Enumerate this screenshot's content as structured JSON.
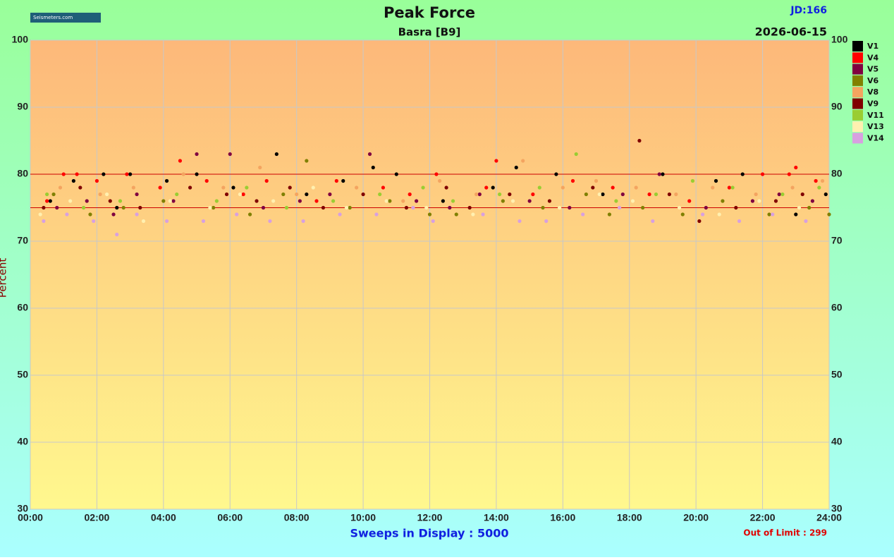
{
  "chart_data": {
    "type": "scatter",
    "title": "Peak Force",
    "subtitle": "Basra  [B9]",
    "jd_label": "JD:166",
    "date": "2026-06-15",
    "logo": "Seismeters.com",
    "ylabel": "Percent",
    "footer": "Sweeps in Display : 5000",
    "out_of_limit": "Out of Limit : 299",
    "xlim": [
      0,
      24
    ],
    "xticks": [
      {
        "value": 0,
        "label": "00:00"
      },
      {
        "value": 2,
        "label": "02:00"
      },
      {
        "value": 4,
        "label": "04:00"
      },
      {
        "value": 6,
        "label": "06:00"
      },
      {
        "value": 8,
        "label": "08:00"
      },
      {
        "value": 10,
        "label": "10:00"
      },
      {
        "value": 12,
        "label": "12:00"
      },
      {
        "value": 14,
        "label": "14:00"
      },
      {
        "value": 16,
        "label": "16:00"
      },
      {
        "value": 18,
        "label": "18:00"
      },
      {
        "value": 20,
        "label": "20:00"
      },
      {
        "value": 22,
        "label": "22:00"
      },
      {
        "value": 24,
        "label": "24:00"
      }
    ],
    "ylim": [
      30,
      100
    ],
    "yticks": [
      30,
      40,
      50,
      60,
      70,
      80,
      90,
      100
    ],
    "grid": true,
    "limit_lines": [
      75,
      80
    ],
    "limit_color": "#cc0000",
    "series": [
      {
        "name": "V1",
        "color": "#000000",
        "x": [
          0.6,
          1.3,
          2.2,
          2.6,
          3.0,
          4.1,
          5.0,
          6.1,
          7.4,
          8.3,
          9.4,
          10.3,
          11.0,
          12.4,
          13.9,
          14.6,
          15.8,
          17.2,
          19.0,
          20.6,
          21.4,
          23.0,
          23.9
        ],
        "values": [
          76,
          79,
          80,
          75,
          80,
          79,
          80,
          78,
          83,
          77,
          79,
          81,
          80,
          76,
          78,
          81,
          80,
          77,
          80,
          79,
          80,
          74,
          77
        ]
      },
      {
        "name": "V4",
        "color": "#ff0000",
        "x": [
          0.5,
          1.0,
          1.4,
          2.0,
          2.9,
          3.9,
          4.5,
          5.3,
          6.4,
          7.1,
          8.6,
          9.2,
          10.6,
          11.4,
          12.2,
          13.7,
          14.0,
          15.1,
          16.3,
          17.5,
          18.6,
          19.8,
          21.0,
          22.0,
          22.8,
          23.0,
          23.6
        ],
        "values": [
          76,
          80,
          80,
          79,
          80,
          78,
          82,
          79,
          77,
          79,
          76,
          79,
          78,
          77,
          80,
          78,
          82,
          77,
          79,
          78,
          77,
          76,
          78,
          80,
          80,
          81,
          79
        ]
      },
      {
        "name": "V5",
        "color": "#800040",
        "x": [
          0.8,
          1.7,
          2.5,
          3.2,
          4.3,
          5.0,
          6.0,
          7.0,
          8.1,
          9.0,
          10.2,
          11.6,
          12.6,
          13.5,
          15.0,
          16.2,
          17.8,
          18.9,
          20.3,
          21.7,
          22.5,
          23.5
        ],
        "values": [
          75,
          76,
          74,
          77,
          76,
          83,
          83,
          75,
          76,
          77,
          83,
          76,
          75,
          77,
          76,
          75,
          77,
          80,
          75,
          76,
          77,
          76
        ]
      },
      {
        "name": "V6",
        "color": "#808000",
        "x": [
          0.7,
          1.8,
          2.8,
          4.0,
          5.5,
          6.6,
          7.6,
          8.3,
          9.6,
          10.8,
          12.0,
          12.8,
          14.2,
          15.4,
          16.7,
          17.4,
          18.4,
          19.6,
          20.8,
          22.2,
          23.4,
          24.0
        ],
        "values": [
          77,
          74,
          75,
          76,
          75,
          74,
          77,
          82,
          75,
          76,
          74,
          74,
          76,
          75,
          77,
          74,
          75,
          74,
          76,
          74,
          75,
          74
        ]
      },
      {
        "name": "V8",
        "color": "#f4a460",
        "x": [
          0.9,
          2.1,
          3.1,
          4.6,
          5.8,
          6.9,
          8.0,
          9.8,
          11.2,
          12.3,
          13.4,
          14.8,
          16.0,
          17.0,
          18.2,
          19.4,
          20.5,
          21.8,
          22.9,
          23.8
        ],
        "values": [
          78,
          77,
          78,
          80,
          78,
          81,
          77,
          78,
          76,
          79,
          77,
          82,
          78,
          79,
          78,
          77,
          78,
          77,
          78,
          79
        ]
      },
      {
        "name": "V9",
        "color": "#800000",
        "x": [
          0.4,
          1.5,
          2.4,
          3.3,
          4.8,
          5.9,
          6.8,
          7.8,
          8.8,
          10.0,
          11.3,
          12.5,
          13.2,
          14.4,
          15.6,
          16.9,
          18.3,
          19.2,
          20.1,
          21.2,
          22.4,
          23.2
        ],
        "values": [
          75,
          78,
          76,
          75,
          78,
          77,
          76,
          78,
          75,
          77,
          75,
          78,
          75,
          77,
          76,
          78,
          85,
          77,
          73,
          75,
          76,
          77
        ]
      },
      {
        "name": "V11",
        "color": "#9acd32",
        "x": [
          0.5,
          1.6,
          2.7,
          4.4,
          5.6,
          6.5,
          7.7,
          9.1,
          10.5,
          11.8,
          12.7,
          14.1,
          15.3,
          16.4,
          17.6,
          18.8,
          19.9,
          21.1,
          22.6,
          23.7
        ],
        "values": [
          77,
          75,
          76,
          77,
          76,
          78,
          75,
          76,
          77,
          78,
          76,
          77,
          78,
          83,
          76,
          77,
          79,
          78,
          77,
          78
        ]
      },
      {
        "name": "V13",
        "color": "#fff0b0",
        "x": [
          0.3,
          1.2,
          2.3,
          3.4,
          4.2,
          5.4,
          6.3,
          7.3,
          8.5,
          9.5,
          10.7,
          11.9,
          13.3,
          14.5,
          15.9,
          17.1,
          18.1,
          19.5,
          20.7,
          21.9,
          23.1
        ],
        "values": [
          74,
          76,
          77,
          73,
          76,
          75,
          77,
          76,
          78,
          75,
          76,
          75,
          74,
          76,
          75,
          77,
          76,
          75,
          74,
          76,
          75
        ]
      },
      {
        "name": "V14",
        "color": "#d8a0e0",
        "x": [
          0.4,
          1.1,
          1.9,
          2.6,
          3.2,
          4.1,
          5.2,
          6.2,
          7.2,
          8.2,
          9.3,
          10.4,
          11.5,
          12.1,
          13.6,
          14.7,
          15.5,
          16.6,
          17.7,
          18.7,
          20.2,
          21.3,
          22.3,
          23.3
        ],
        "values": [
          73,
          74,
          73,
          71,
          74,
          73,
          73,
          74,
          73,
          73,
          74,
          74,
          75,
          73,
          74,
          73,
          73,
          74,
          75,
          73,
          74,
          73,
          74,
          73
        ]
      }
    ]
  }
}
